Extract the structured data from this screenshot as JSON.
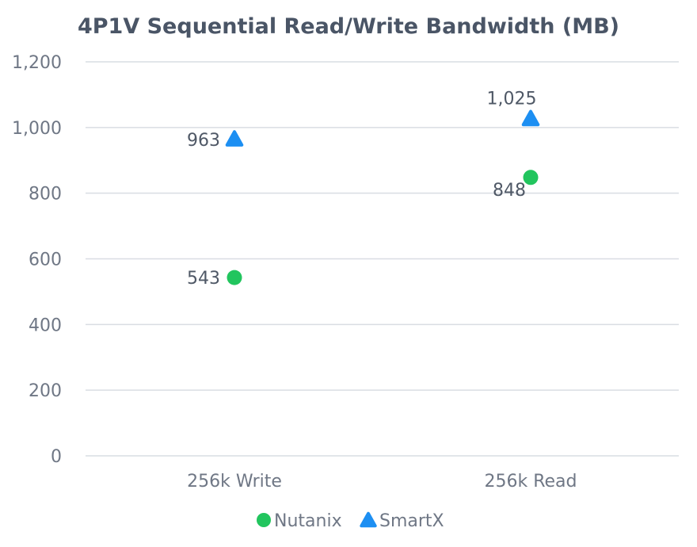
{
  "chart_data": {
    "type": "scatter",
    "title": "4P1V Sequential Read/Write Bandwidth (MB)",
    "categories": [
      "256k Write",
      "256k Read"
    ],
    "ylim": [
      0,
      1200
    ],
    "yticks": [
      0,
      200,
      400,
      600,
      800,
      1000,
      1200
    ],
    "ytick_labels": [
      "0",
      "200",
      "400",
      "600",
      "800",
      "1,000",
      "1,200"
    ],
    "grid": true,
    "legend_position": "bottom",
    "series": [
      {
        "name": "Nutanix",
        "marker": "circle",
        "color": "#22c55e",
        "values": [
          543,
          848
        ],
        "labels": [
          "543",
          "848"
        ]
      },
      {
        "name": "SmartX",
        "marker": "triangle",
        "color": "#1d8ff2",
        "values": [
          963,
          1025
        ],
        "labels": [
          "963",
          "1,025"
        ]
      }
    ]
  }
}
